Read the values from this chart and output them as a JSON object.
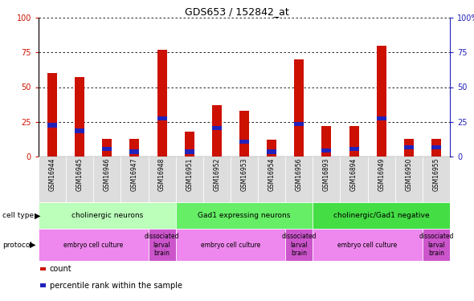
{
  "title": "GDS653 / 152842_at",
  "samples": [
    "GSM16944",
    "GSM16945",
    "GSM16946",
    "GSM16947",
    "GSM16948",
    "GSM16951",
    "GSM16952",
    "GSM16953",
    "GSM16954",
    "GSM16956",
    "GSM16893",
    "GSM16894",
    "GSM16949",
    "GSM16950",
    "GSM16955"
  ],
  "count_values": [
    60,
    57,
    13,
    13,
    77,
    18,
    37,
    33,
    12,
    70,
    22,
    22,
    80,
    13,
    13
  ],
  "percentile_values": [
    24,
    20,
    7,
    5,
    29,
    5,
    22,
    12,
    5,
    25,
    6,
    7,
    29,
    8,
    8
  ],
  "bar_color_red": "#cc1100",
  "bar_color_blue": "#2222bb",
  "ylim": [
    0,
    100
  ],
  "yticks": [
    0,
    25,
    50,
    75,
    100
  ],
  "cell_type_groups": [
    {
      "label": "cholinergic neurons",
      "start": 0,
      "end": 5,
      "color": "#bbffbb"
    },
    {
      "label": "Gad1 expressing neurons",
      "start": 5,
      "end": 10,
      "color": "#66ee66"
    },
    {
      "label": "cholinergic/Gad1 negative",
      "start": 10,
      "end": 15,
      "color": "#44dd44"
    }
  ],
  "protocol_groups": [
    {
      "label": "embryo cell culture",
      "start": 0,
      "end": 4,
      "color": "#ee88ee"
    },
    {
      "label": "dissociated\nlarval\nbrain",
      "start": 4,
      "end": 5,
      "color": "#cc55cc"
    },
    {
      "label": "embryo cell culture",
      "start": 5,
      "end": 9,
      "color": "#ee88ee"
    },
    {
      "label": "dissociated\nlarval\nbrain",
      "start": 9,
      "end": 10,
      "color": "#cc55cc"
    },
    {
      "label": "embryo cell culture",
      "start": 10,
      "end": 14,
      "color": "#ee88ee"
    },
    {
      "label": "dissociated\nlarval\nbrain",
      "start": 14,
      "end": 15,
      "color": "#cc55cc"
    }
  ],
  "legend_items": [
    {
      "label": "count",
      "color": "#cc1100"
    },
    {
      "label": "percentile rank within the sample",
      "color": "#2222bb"
    }
  ],
  "left_axis_color": "#cc1100",
  "right_axis_color": "#2222bb",
  "bar_width": 0.35,
  "bg_color": "#ffffff",
  "blue_bar_height": 3
}
